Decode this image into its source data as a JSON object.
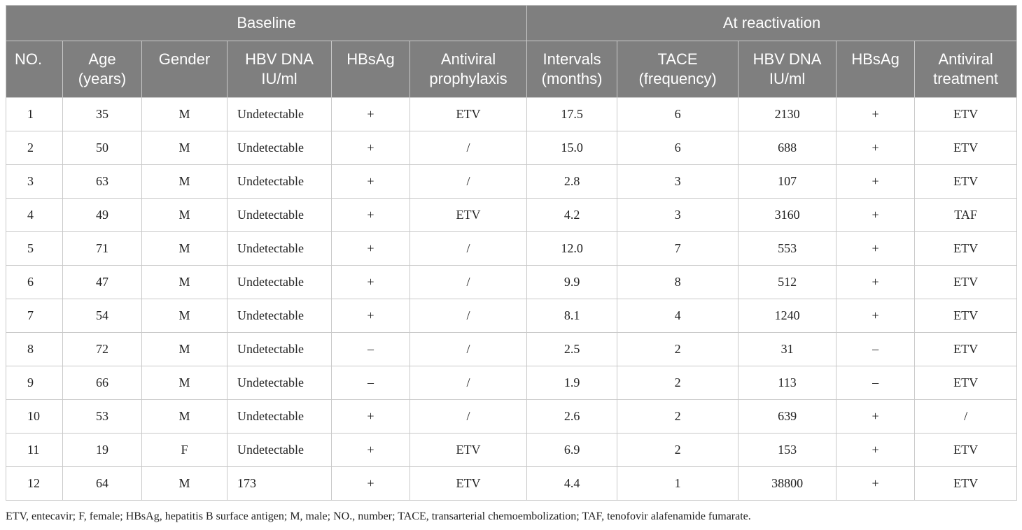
{
  "group_headers": [
    "Baseline",
    "At reactivation"
  ],
  "column_headers": [
    [
      "NO."
    ],
    [
      "Age",
      "(years)"
    ],
    [
      "Gender"
    ],
    [
      "HBV DNA",
      "IU/ml"
    ],
    [
      "HBsAg"
    ],
    [
      "Antiviral",
      "prophylaxis"
    ],
    [
      "Intervals",
      "(months)"
    ],
    [
      "TACE",
      "(frequency)"
    ],
    [
      "HBV DNA",
      "IU/ml"
    ],
    [
      "HBsAg"
    ],
    [
      "Antiviral",
      "treatment"
    ]
  ],
  "rows": [
    [
      "1",
      "35",
      "M",
      "Undetectable",
      "+",
      "ETV",
      "17.5",
      "6",
      "2130",
      "+",
      "ETV"
    ],
    [
      "2",
      "50",
      "M",
      "Undetectable",
      "+",
      "/",
      "15.0",
      "6",
      "688",
      "+",
      "ETV"
    ],
    [
      "3",
      "63",
      "M",
      "Undetectable",
      "+",
      "/",
      "2.8",
      "3",
      "107",
      "+",
      "ETV"
    ],
    [
      "4",
      "49",
      "M",
      "Undetectable",
      "+",
      "ETV",
      "4.2",
      "3",
      "3160",
      "+",
      "TAF"
    ],
    [
      "5",
      "71",
      "M",
      "Undetectable",
      "+",
      "/",
      "12.0",
      "7",
      "553",
      "+",
      "ETV"
    ],
    [
      "6",
      "47",
      "M",
      "Undetectable",
      "+",
      "/",
      "9.9",
      "8",
      "512",
      "+",
      "ETV"
    ],
    [
      "7",
      "54",
      "M",
      "Undetectable",
      "+",
      "/",
      "8.1",
      "4",
      "1240",
      "+",
      "ETV"
    ],
    [
      "8",
      "72",
      "M",
      "Undetectable",
      "–",
      "/",
      "2.5",
      "2",
      "31",
      "–",
      "ETV"
    ],
    [
      "9",
      "66",
      "M",
      "Undetectable",
      "–",
      "/",
      "1.9",
      "2",
      "113",
      "–",
      "ETV"
    ],
    [
      "10",
      "53",
      "M",
      "Undetectable",
      "+",
      "/",
      "2.6",
      "2",
      "639",
      "+",
      "/"
    ],
    [
      "11",
      "19",
      "F",
      "Undetectable",
      "+",
      "ETV",
      "6.9",
      "2",
      "153",
      "+",
      "ETV"
    ],
    [
      "12",
      "64",
      "M",
      "173",
      "+",
      "ETV",
      "4.4",
      "1",
      "38800",
      "+",
      "ETV"
    ]
  ],
  "footnote": "ETV, entecavir; F, female; HBsAg, hepatitis B surface antigen; M, male; NO., number; TACE, transarterial chemoembolization; TAF, tenofovir alafenamide fumarate."
}
